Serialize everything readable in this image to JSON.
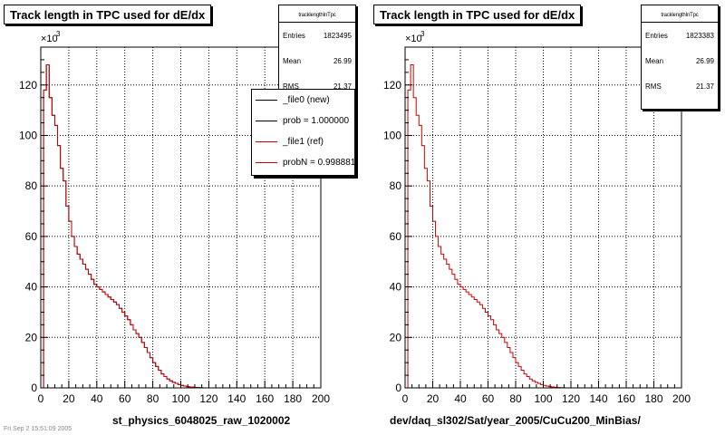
{
  "footer_text": "Fri Sep  2 15:51:09 2005",
  "chart_data": [
    {
      "type": "histogram",
      "title": "Track length in TPC used for dE/dx",
      "xlabel": "st_physics_6048025_raw_1020002",
      "xlim": [
        0,
        200
      ],
      "ylim": [
        0,
        135
      ],
      "y_exponent_label": "×10",
      "y_exponent_power": "3",
      "xticks": [
        "0",
        "20",
        "40",
        "60",
        "80",
        "100",
        "120",
        "140",
        "160",
        "180",
        "200"
      ],
      "yticks": [
        "0",
        "20",
        "40",
        "60",
        "80",
        "100",
        "120"
      ],
      "grid": true,
      "bin_width": 2,
      "stats": {
        "name": "tracklengthInTpc",
        "rows": [
          {
            "label": "Entries",
            "value": "1823495"
          },
          {
            "label": "Mean",
            "value": "26.99"
          },
          {
            "label": "RMS",
            "value": "21.37"
          }
        ]
      },
      "legend": [
        {
          "label": "_file0 (new)",
          "color": "#000000"
        },
        {
          "label": "prob = 1.000000",
          "color": "#000000"
        },
        {
          "label": "_file1 (ref)",
          "color": "#cc0000"
        },
        {
          "label": "probN = 0.998881",
          "color": "#cc0000"
        }
      ],
      "series": [
        {
          "name": "_file0 (new)",
          "color": "#000000",
          "values": [
            0,
            118,
            128,
            115,
            108,
            104,
            96,
            87,
            82,
            72,
            66,
            60,
            56,
            53,
            51,
            49,
            47,
            45,
            43,
            41,
            40,
            39,
            38,
            37,
            36,
            35,
            34,
            33,
            31.5,
            30,
            28.5,
            27,
            25,
            23,
            21.5,
            20,
            18,
            16,
            14,
            12,
            10,
            8.5,
            7,
            5.5,
            4.5,
            3.5,
            2.8,
            2.2,
            1.8,
            1.3,
            1,
            0.7,
            0.5,
            0.35,
            0.25,
            0.15,
            0.1,
            0.05,
            0.02,
            0.01
          ]
        },
        {
          "name": "_file1 (ref)",
          "color": "#cc0000",
          "values": [
            0,
            118,
            128,
            115,
            108,
            104,
            96,
            87,
            82,
            72,
            66,
            60,
            56,
            53,
            51,
            49,
            47,
            45,
            43,
            41,
            40,
            39,
            38,
            37,
            36,
            35,
            34,
            33,
            31.5,
            30,
            28.5,
            27,
            25,
            23,
            21.5,
            20,
            18,
            16,
            14,
            12,
            10,
            8.5,
            7,
            5.5,
            4.5,
            3.5,
            2.8,
            2.2,
            1.8,
            1.3,
            1,
            0.7,
            0.5,
            0.35,
            0.25,
            0.15,
            0.1,
            0.05,
            0.02,
            0.01
          ]
        }
      ]
    },
    {
      "type": "histogram",
      "title": "Track length in TPC used for dE/dx",
      "xlabel": "dev/daq_sl302/Sat/year_2005/CuCu200_MinBias/",
      "xlim": [
        0,
        200
      ],
      "ylim": [
        0,
        135
      ],
      "y_exponent_label": "×10",
      "y_exponent_power": "3",
      "xticks": [
        "0",
        "20",
        "40",
        "60",
        "80",
        "100",
        "120",
        "140",
        "160",
        "180",
        "200"
      ],
      "yticks": [
        "0",
        "20",
        "40",
        "60",
        "80",
        "100",
        "120"
      ],
      "grid": true,
      "bin_width": 2,
      "stats": {
        "name": "tracklengthInTpc",
        "rows": [
          {
            "label": "Entries",
            "value": "1823383"
          },
          {
            "label": "Mean",
            "value": "26.99"
          },
          {
            "label": "RMS",
            "value": "21.37"
          }
        ]
      },
      "series": [
        {
          "name": "",
          "color": "#cc0000",
          "values": [
            0,
            118,
            128,
            115,
            108,
            104,
            96,
            87,
            82,
            72,
            66,
            60,
            56,
            53,
            51,
            49,
            47,
            45,
            43,
            41,
            40,
            39,
            38,
            37,
            36,
            35,
            34,
            33,
            31.5,
            30,
            28.5,
            27,
            25,
            23,
            21.5,
            20,
            18,
            16,
            14,
            12,
            10,
            8.5,
            7,
            5.5,
            4.5,
            3.5,
            2.8,
            2.2,
            1.8,
            1.3,
            1,
            0.7,
            0.5,
            0.35,
            0.25,
            0.15,
            0.1,
            0.05,
            0.02,
            0.01
          ]
        }
      ]
    }
  ]
}
